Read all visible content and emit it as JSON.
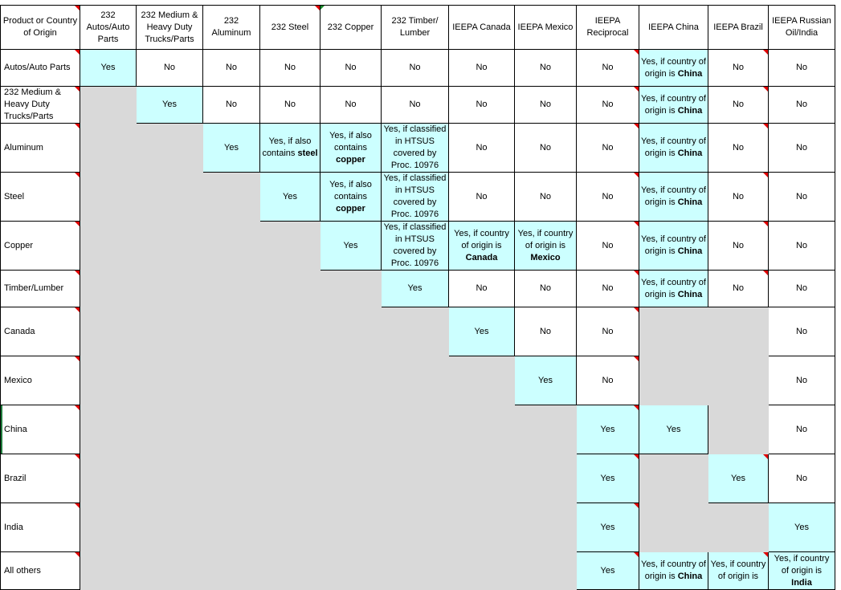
{
  "headers": [
    "Product or Country of Origin",
    "232 Autos/Auto Parts",
    "232 Medium & Heavy Duty Trucks/Parts",
    "232 Aluminum",
    "232 Steel",
    "232 Copper",
    "232 Timber/ Lumber",
    "IEEPA Canada",
    "IEEPA Mexico",
    "IEEPA Reciprocal",
    "IEEPA China",
    "IEEPA Brazil",
    "IEEPA Russian Oil/India"
  ],
  "rows": [
    {
      "label": "Autos/Auto Parts",
      "cells": [
        {
          "c": "y",
          "pre": "Yes"
        },
        {
          "c": "w",
          "pre": "No"
        },
        {
          "c": "w",
          "pre": "No"
        },
        {
          "c": "w",
          "pre": "No"
        },
        {
          "c": "w",
          "pre": "No"
        },
        {
          "c": "w",
          "pre": "No"
        },
        {
          "c": "w",
          "pre": "No"
        },
        {
          "c": "w",
          "pre": "No"
        },
        {
          "c": "w",
          "pre": "No"
        },
        {
          "c": "y",
          "pre": "Yes, if country of origin is ",
          "bold": "China"
        },
        {
          "c": "w",
          "pre": "No"
        },
        {
          "c": "w",
          "pre": "No"
        }
      ]
    },
    {
      "label": "232 Medium & Heavy Duty Trucks/Parts",
      "cells": [
        {
          "c": "g"
        },
        {
          "c": "y",
          "pre": "Yes"
        },
        {
          "c": "w",
          "pre": "No"
        },
        {
          "c": "w",
          "pre": "No"
        },
        {
          "c": "w",
          "pre": "No"
        },
        {
          "c": "w",
          "pre": "No"
        },
        {
          "c": "w",
          "pre": "No"
        },
        {
          "c": "w",
          "pre": "No"
        },
        {
          "c": "w",
          "pre": "No"
        },
        {
          "c": "y",
          "pre": "Yes, if country of origin is ",
          "bold": "China"
        },
        {
          "c": "w",
          "pre": "No"
        },
        {
          "c": "w",
          "pre": "No"
        }
      ]
    },
    {
      "label": "Aluminum",
      "cells": [
        {
          "c": "g"
        },
        {
          "c": "g"
        },
        {
          "c": "y",
          "pre": "Yes"
        },
        {
          "c": "y",
          "pre": "Yes, if also contains ",
          "bold": "steel"
        },
        {
          "c": "y",
          "pre": "Yes, if also contains ",
          "bold": "copper"
        },
        {
          "c": "y",
          "pre": "Yes, if classified in HTSUS covered by Proc. 10976"
        },
        {
          "c": "w",
          "pre": "No"
        },
        {
          "c": "w",
          "pre": "No"
        },
        {
          "c": "w",
          "pre": "No"
        },
        {
          "c": "y",
          "pre": "Yes, if country of origin is ",
          "bold": "China"
        },
        {
          "c": "w",
          "pre": "No"
        },
        {
          "c": "w",
          "pre": "No"
        }
      ]
    },
    {
      "label": "Steel",
      "cells": [
        {
          "c": "g"
        },
        {
          "c": "g"
        },
        {
          "c": "g"
        },
        {
          "c": "y",
          "pre": "Yes"
        },
        {
          "c": "y",
          "pre": "Yes, if also contains ",
          "bold": "copper"
        },
        {
          "c": "y",
          "pre": "Yes, if classified in HTSUS covered by Proc. 10976"
        },
        {
          "c": "w",
          "pre": "No"
        },
        {
          "c": "w",
          "pre": "No"
        },
        {
          "c": "w",
          "pre": "No"
        },
        {
          "c": "y",
          "pre": "Yes, if country of origin is ",
          "bold": "China"
        },
        {
          "c": "w",
          "pre": "No"
        },
        {
          "c": "w",
          "pre": "No"
        }
      ]
    },
    {
      "label": "Copper",
      "cells": [
        {
          "c": "g"
        },
        {
          "c": "g"
        },
        {
          "c": "g"
        },
        {
          "c": "g"
        },
        {
          "c": "y",
          "pre": "Yes"
        },
        {
          "c": "y",
          "pre": "Yes, if classified in HTSUS covered by Proc. 10976"
        },
        {
          "c": "y",
          "pre": "Yes, if country of origin is ",
          "bold": "Canada"
        },
        {
          "c": "y",
          "pre": "Yes, if country of origin is ",
          "bold": "Mexico"
        },
        {
          "c": "w",
          "pre": "No"
        },
        {
          "c": "y",
          "pre": "Yes, if country of origin is ",
          "bold": "China"
        },
        {
          "c": "w",
          "pre": "No"
        },
        {
          "c": "w",
          "pre": "No"
        }
      ]
    },
    {
      "label": "Timber/Lumber",
      "cells": [
        {
          "c": "g"
        },
        {
          "c": "g"
        },
        {
          "c": "g"
        },
        {
          "c": "g"
        },
        {
          "c": "g"
        },
        {
          "c": "y",
          "pre": "Yes"
        },
        {
          "c": "w",
          "pre": "No"
        },
        {
          "c": "w",
          "pre": "No"
        },
        {
          "c": "w",
          "pre": "No"
        },
        {
          "c": "y",
          "pre": "Yes, if country of origin is ",
          "bold": "China"
        },
        {
          "c": "w",
          "pre": "No"
        },
        {
          "c": "w",
          "pre": "No"
        }
      ]
    },
    {
      "label": "Canada",
      "cells": [
        {
          "c": "g"
        },
        {
          "c": "g"
        },
        {
          "c": "g"
        },
        {
          "c": "g"
        },
        {
          "c": "g"
        },
        {
          "c": "g"
        },
        {
          "c": "y",
          "pre": "Yes"
        },
        {
          "c": "w",
          "pre": "No"
        },
        {
          "c": "w",
          "pre": "No"
        },
        {
          "c": "g"
        },
        {
          "c": "g"
        },
        {
          "c": "w",
          "pre": "No"
        }
      ]
    },
    {
      "label": "Mexico",
      "cells": [
        {
          "c": "g"
        },
        {
          "c": "g"
        },
        {
          "c": "g"
        },
        {
          "c": "g"
        },
        {
          "c": "g"
        },
        {
          "c": "g"
        },
        {
          "c": "g"
        },
        {
          "c": "y",
          "pre": "Yes"
        },
        {
          "c": "w",
          "pre": "No"
        },
        {
          "c": "g"
        },
        {
          "c": "g"
        },
        {
          "c": "w",
          "pre": "No"
        }
      ]
    },
    {
      "label": "China",
      "cells": [
        {
          "c": "g"
        },
        {
          "c": "g"
        },
        {
          "c": "g"
        },
        {
          "c": "g"
        },
        {
          "c": "g"
        },
        {
          "c": "g"
        },
        {
          "c": "g"
        },
        {
          "c": "g"
        },
        {
          "c": "y",
          "pre": "Yes"
        },
        {
          "c": "y",
          "pre": "Yes"
        },
        {
          "c": "g"
        },
        {
          "c": "w",
          "pre": "No"
        }
      ]
    },
    {
      "label": "Brazil",
      "cells": [
        {
          "c": "g"
        },
        {
          "c": "g"
        },
        {
          "c": "g"
        },
        {
          "c": "g"
        },
        {
          "c": "g"
        },
        {
          "c": "g"
        },
        {
          "c": "g"
        },
        {
          "c": "g"
        },
        {
          "c": "y",
          "pre": "Yes"
        },
        {
          "c": "g"
        },
        {
          "c": "y",
          "pre": "Yes"
        },
        {
          "c": "w",
          "pre": "No"
        }
      ]
    },
    {
      "label": "India",
      "cells": [
        {
          "c": "g"
        },
        {
          "c": "g"
        },
        {
          "c": "g"
        },
        {
          "c": "g"
        },
        {
          "c": "g"
        },
        {
          "c": "g"
        },
        {
          "c": "g"
        },
        {
          "c": "g"
        },
        {
          "c": "y",
          "pre": "Yes"
        },
        {
          "c": "g"
        },
        {
          "c": "g"
        },
        {
          "c": "y",
          "pre": "Yes"
        }
      ]
    },
    {
      "label": "All others",
      "cells": [
        {
          "c": "g"
        },
        {
          "c": "g"
        },
        {
          "c": "g"
        },
        {
          "c": "g"
        },
        {
          "c": "g"
        },
        {
          "c": "g"
        },
        {
          "c": "g"
        },
        {
          "c": "g"
        },
        {
          "c": "y",
          "pre": "Yes"
        },
        {
          "c": "y",
          "pre": "Yes, if country of origin is ",
          "bold": "China"
        },
        {
          "c": "y",
          "pre": "Yes, if country of origin is"
        },
        {
          "c": "y",
          "pre": "Yes, if country of origin is ",
          "bold": "India"
        }
      ]
    }
  ],
  "colors": {
    "highlight": "#ccffff",
    "na": "#d9d9d9",
    "comment": "#e00000",
    "selection": "#1e7b3c"
  }
}
